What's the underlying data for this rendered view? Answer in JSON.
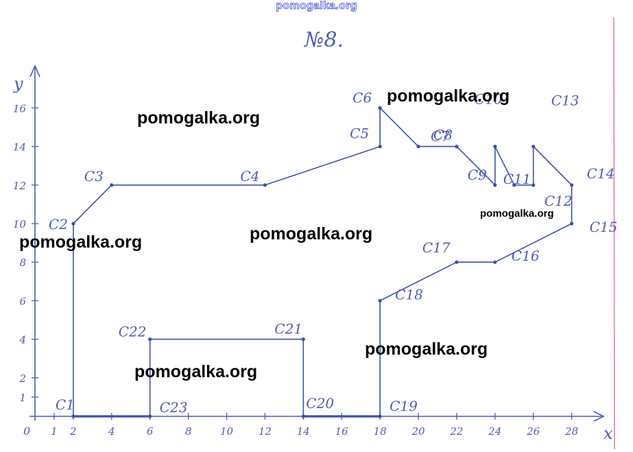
{
  "header": {
    "site": "pomogalka.org",
    "problem_number": "№8."
  },
  "axes": {
    "x_label": "x",
    "y_label": "y",
    "origin_label": "0",
    "x_ticks": [
      "1",
      "2",
      "4",
      "6",
      "8",
      "10",
      "12",
      "14",
      "16",
      "18",
      "20",
      "22",
      "24",
      "26",
      "28"
    ],
    "x_tick_values": [
      1,
      2,
      4,
      6,
      8,
      10,
      12,
      14,
      16,
      18,
      20,
      22,
      24,
      26,
      28
    ],
    "y_ticks": [
      "1",
      "2",
      "4",
      "6",
      "8",
      "10",
      "12",
      "14",
      "16"
    ],
    "y_tick_values": [
      1,
      2,
      4,
      6,
      8,
      10,
      12,
      14,
      16
    ],
    "color": "#4a5cb8"
  },
  "figure": {
    "stroke_color": "#3b4fb5",
    "points": [
      {
        "label": "C1",
        "x": 2,
        "y": 0
      },
      {
        "label": "C2",
        "x": 2,
        "y": 10
      },
      {
        "label": "C3",
        "x": 4,
        "y": 12
      },
      {
        "label": "C4",
        "x": 12,
        "y": 12
      },
      {
        "label": "C5",
        "x": 18,
        "y": 14
      },
      {
        "label": "C6",
        "x": 18,
        "y": 16
      },
      {
        "label": "C7",
        "x": 20,
        "y": 14
      },
      {
        "label": "C8",
        "x": 22,
        "y": 14
      },
      {
        "label": "C9",
        "x": 24,
        "y": 12
      },
      {
        "label": "C10",
        "x": 24,
        "y": 14
      },
      {
        "label": "C11",
        "x": 25,
        "y": 12
      },
      {
        "label": "C12",
        "x": 26,
        "y": 12
      },
      {
        "label": "C13",
        "x": 26,
        "y": 14
      },
      {
        "label": "C14",
        "x": 28,
        "y": 12
      },
      {
        "label": "C15",
        "x": 28,
        "y": 10
      },
      {
        "label": "C16",
        "x": 24,
        "y": 8
      },
      {
        "label": "C17",
        "x": 22,
        "y": 8
      },
      {
        "label": "C18",
        "x": 18,
        "y": 6
      },
      {
        "label": "C19",
        "x": 18,
        "y": 0
      },
      {
        "label": "C20",
        "x": 14,
        "y": 0
      },
      {
        "label": "C21",
        "x": 14,
        "y": 4
      },
      {
        "label": "C22",
        "x": 6,
        "y": 4
      },
      {
        "label": "C23",
        "x": 6,
        "y": 0
      }
    ]
  },
  "watermarks": [
    {
      "text": "pomogalka.org"
    },
    {
      "text": "pomogalka.org"
    },
    {
      "text": "pomogalka.org"
    },
    {
      "text": "pomogalka.org"
    },
    {
      "text": "pomogalka.org"
    },
    {
      "text": "pomogalka.org"
    },
    {
      "text": "pomogalka.org"
    }
  ]
}
